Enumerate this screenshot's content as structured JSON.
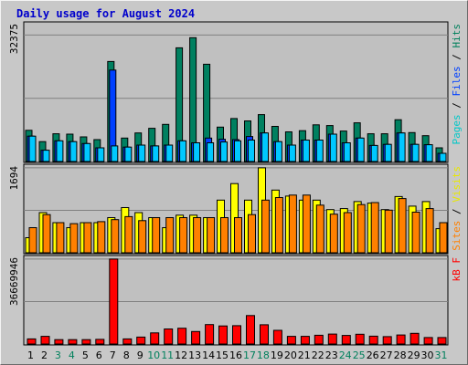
{
  "chart_data": {
    "type": "bar",
    "title": "Daily usage for August 2024",
    "categories": [
      "1",
      "2",
      "3",
      "4",
      "5",
      "6",
      "7",
      "8",
      "9",
      "10",
      "11",
      "12",
      "13",
      "14",
      "15",
      "16",
      "17",
      "18",
      "19",
      "20",
      "21",
      "22",
      "23",
      "24",
      "25",
      "26",
      "27",
      "28",
      "29",
      "30",
      "31"
    ],
    "weekend_days": [
      "3",
      "4",
      "10",
      "11",
      "17",
      "18",
      "24",
      "25",
      "31"
    ],
    "panels": [
      {
        "id": "hits-files-pages",
        "max_label": "32375",
        "ymax": 32375,
        "side_labels": [
          {
            "text": "Pages",
            "color": "#00c8c8"
          },
          {
            "text": " / ",
            "color": "#000000"
          },
          {
            "text": "Files",
            "color": "#0040ff"
          },
          {
            "text": " / ",
            "color": "#000000"
          },
          {
            "text": "Hits",
            "color": "#00805c"
          }
        ],
        "series": [
          {
            "name": "Hits",
            "color": "#008060",
            "values": [
              8000,
              5100,
              7100,
              7000,
              6300,
              5600,
              25600,
              6000,
              7300,
              8500,
              9500,
              29100,
              31700,
              24900,
              8800,
              11000,
              10400,
              12000,
              9000,
              7600,
              7900,
              9400,
              9200,
              7800,
              9900,
              7100,
              7100,
              10700,
              7400,
              6600,
              3500
            ]
          },
          {
            "name": "Files",
            "color": "#0040ff",
            "values": [
              6500,
              2900,
              5300,
              5100,
              4600,
              3500,
              23400,
              3700,
              4200,
              4000,
              4200,
              5300,
              4800,
              6000,
              5700,
              5600,
              6400,
              7300,
              5100,
              4200,
              5500,
              5500,
              7000,
              4800,
              6000,
              4100,
              4400,
              7300,
              4400,
              4300,
              2100
            ]
          },
          {
            "name": "Pages",
            "color": "#00c8ff",
            "values": [
              6500,
              2900,
              5300,
              5100,
              4600,
              3500,
              4000,
              3700,
              4200,
              4000,
              4200,
              5300,
              4800,
              4800,
              5000,
              5300,
              5500,
              7300,
              5100,
              4200,
              5500,
              5500,
              7000,
              4800,
              6000,
              4100,
              4400,
              7300,
              4400,
              4300,
              2100
            ]
          }
        ]
      },
      {
        "id": "visits-sites",
        "max_label": "1694",
        "ymax": 1694,
        "side_labels": [
          {
            "text": "Sites",
            "color": "#ff8000"
          },
          {
            "text": " / ",
            "color": "#000000"
          },
          {
            "text": "Visits",
            "color": "#e8e800"
          }
        ],
        "series": [
          {
            "name": "Visits",
            "color": "#ffff00",
            "values": [
              300,
              800,
              600,
              500,
              600,
              600,
              700,
              900,
              800,
              700,
              500,
              750,
              750,
              700,
              1050,
              1380,
              1050,
              1694,
              1250,
              1130,
              1050,
              1050,
              860,
              880,
              1020,
              990,
              860,
              1120,
              930,
              1020,
              480
            ]
          },
          {
            "name": "Sites",
            "color": "#ff8000",
            "values": [
              500,
              760,
              600,
              580,
              600,
              620,
              660,
              720,
              640,
              700,
              700,
              700,
              700,
              700,
              700,
              700,
              760,
              1050,
              1100,
              1150,
              1150,
              950,
              770,
              800,
              960,
              1000,
              850,
              1080,
              810,
              880,
              600
            ]
          }
        ]
      },
      {
        "id": "kbf",
        "max_label": "36669946",
        "ymax": 36669946,
        "side_labels": [
          {
            "text": "kB F",
            "color": "#ff0000"
          }
        ],
        "series": [
          {
            "name": "kB F",
            "color": "#ff0000",
            "values": [
              2200000,
              3300000,
              1900000,
              1900000,
              1900000,
              2000000,
              36669946,
              2200000,
              3000000,
              4800000,
              6500000,
              6800000,
              5400000,
              8400000,
              7800000,
              7900000,
              12300000,
              8300000,
              5900000,
              3300000,
              3300000,
              3800000,
              4300000,
              3700000,
              4200000,
              3400000,
              3200000,
              3900000,
              4600000,
              2800000,
              2800000
            ]
          }
        ]
      }
    ]
  }
}
